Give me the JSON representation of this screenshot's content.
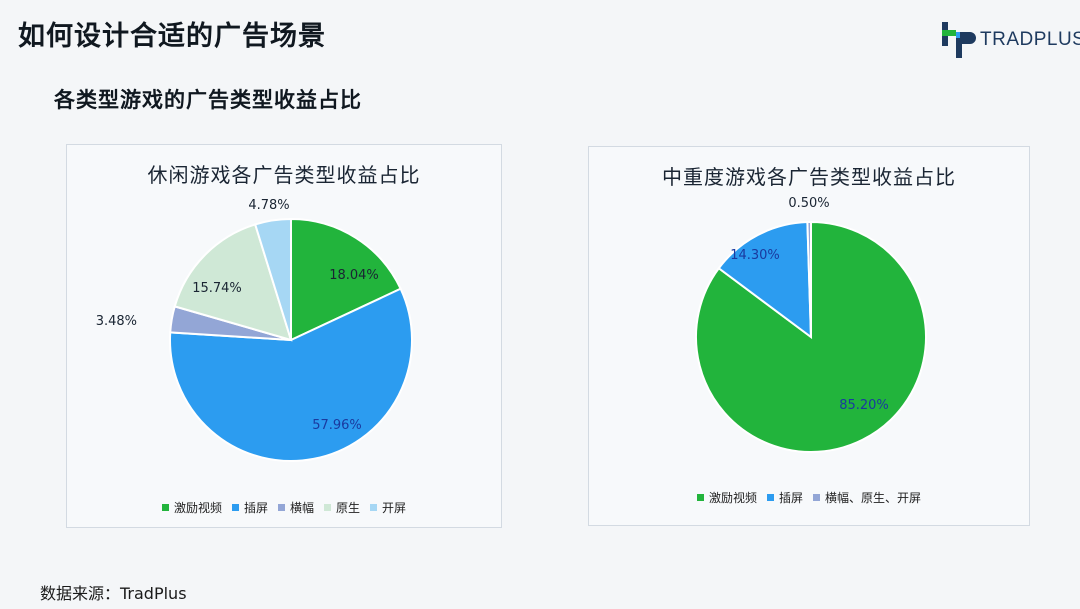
{
  "slide": {
    "title": "如何设计合适的广告场景",
    "section_title": "各类型游戏的广告类型收益占比",
    "source": "数据来源：TradPlus"
  },
  "logo": {
    "text": "TRADPLUS",
    "icon": "tradplus-logo-icon"
  },
  "colors": {
    "激励视频": "#22b43c",
    "插屏": "#2c9cf0",
    "横幅": "#93a6d6",
    "原生": "#cfe8d6",
    "开屏": "#a6d7f4"
  },
  "chart_data": [
    {
      "type": "pie",
      "title": "休闲游戏各广告类型收益占比",
      "categories": [
        "激励视频",
        "插屏",
        "横幅",
        "原生",
        "开屏"
      ],
      "values": [
        18.04,
        57.96,
        3.48,
        15.74,
        4.78
      ],
      "labels": [
        "18.04%",
        "57.96%",
        "3.48%",
        "15.74%",
        "4.78%"
      ],
      "legend": [
        "激励视频",
        "插屏",
        "横幅",
        "原生",
        "开屏"
      ],
      "legend_position": "bottom"
    },
    {
      "type": "pie",
      "title": "中重度游戏各广告类型收益占比",
      "categories": [
        "激励视频",
        "插屏",
        "横幅、原生、开屏"
      ],
      "values": [
        85.2,
        14.3,
        0.5
      ],
      "labels": [
        "85.20%",
        "14.30%",
        "0.50%"
      ],
      "legend": [
        "激励视频",
        "插屏",
        "横幅、原生、开屏"
      ],
      "legend_position": "bottom"
    }
  ]
}
